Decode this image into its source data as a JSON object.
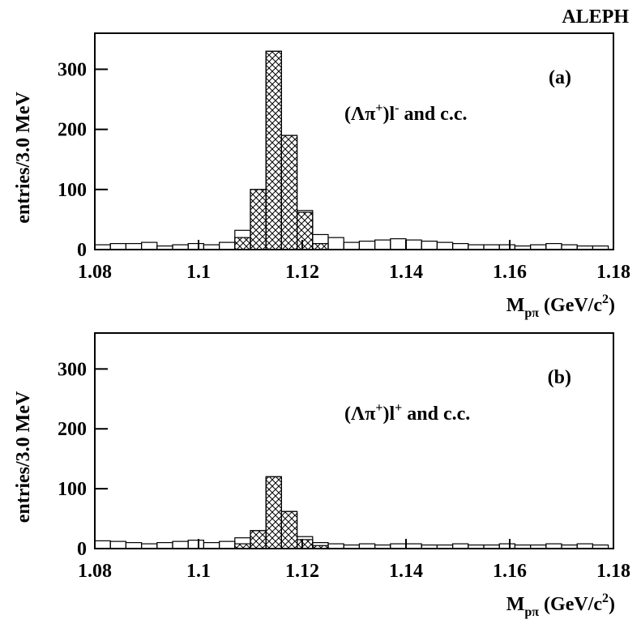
{
  "label": "ALEPH",
  "chart_data": [
    {
      "type": "histogram",
      "y_label": "entries/3.0 MeV",
      "x_label": [
        {
          "text": "M"
        },
        {
          "text": "pπ",
          "pos": "sub"
        },
        {
          "text": " (GeV/c"
        },
        {
          "text": "2",
          "pos": "sup"
        },
        {
          "text": ")"
        }
      ],
      "annotation": "(a)",
      "note": [
        {
          "text": "(Λπ"
        },
        {
          "text": "+",
          "pos": "sup"
        },
        {
          "text": ")l"
        },
        {
          "text": "-",
          "pos": "sup"
        },
        {
          "text": " and c.c."
        }
      ],
      "bins": [
        1.08,
        1.083,
        1.086,
        1.089,
        1.092,
        1.095,
        1.098,
        1.101,
        1.104,
        1.107,
        1.11,
        1.113,
        1.116,
        1.119,
        1.122,
        1.125,
        1.128,
        1.131,
        1.134,
        1.137,
        1.14,
        1.143,
        1.146,
        1.149,
        1.152,
        1.155,
        1.158,
        1.161,
        1.164,
        1.167,
        1.17,
        1.173,
        1.176,
        1.179
      ],
      "series": [
        {
          "fill": "none",
          "values": [
            8,
            10,
            10,
            12,
            6,
            8,
            10,
            8,
            12,
            32,
            100,
            330,
            190,
            65,
            25,
            20,
            12,
            14,
            16,
            18,
            16,
            14,
            12,
            10,
            8,
            8,
            8,
            6,
            8,
            10,
            8,
            6,
            6
          ]
        },
        {
          "fill": "hatch",
          "values": [
            0,
            0,
            0,
            0,
            0,
            0,
            0,
            0,
            0,
            20,
            100,
            330,
            190,
            62,
            10,
            0,
            0,
            0,
            0,
            0,
            0,
            0,
            0,
            0,
            0,
            0,
            0,
            0,
            0,
            0,
            0,
            0,
            0
          ]
        }
      ],
      "xlim": [
        1.08,
        1.18
      ],
      "ylim": [
        0,
        360
      ],
      "xticks": [
        1.08,
        1.1,
        1.12,
        1.14,
        1.16,
        1.18
      ],
      "yticks": [
        0,
        100,
        200,
        300
      ]
    },
    {
      "type": "histogram",
      "y_label": "entries/3.0 MeV",
      "x_label": [
        {
          "text": "M"
        },
        {
          "text": "pπ",
          "pos": "sub"
        },
        {
          "text": " (GeV/c"
        },
        {
          "text": "2",
          "pos": "sup"
        },
        {
          "text": ")"
        }
      ],
      "annotation": "(b)",
      "note": [
        {
          "text": "(Λπ"
        },
        {
          "text": "+",
          "pos": "sup"
        },
        {
          "text": ")l"
        },
        {
          "text": "+",
          "pos": "sup"
        },
        {
          "text": " and c.c."
        }
      ],
      "bins": [
        1.08,
        1.083,
        1.086,
        1.089,
        1.092,
        1.095,
        1.098,
        1.101,
        1.104,
        1.107,
        1.11,
        1.113,
        1.116,
        1.119,
        1.122,
        1.125,
        1.128,
        1.131,
        1.134,
        1.137,
        1.14,
        1.143,
        1.146,
        1.149,
        1.152,
        1.155,
        1.158,
        1.161,
        1.164,
        1.167,
        1.17,
        1.173,
        1.176,
        1.179
      ],
      "series": [
        {
          "fill": "none",
          "values": [
            13,
            12,
            10,
            8,
            10,
            12,
            14,
            10,
            12,
            18,
            30,
            120,
            62,
            20,
            10,
            8,
            6,
            8,
            6,
            8,
            8,
            6,
            6,
            8,
            6,
            6,
            8,
            6,
            6,
            8,
            6,
            8,
            6
          ]
        },
        {
          "fill": "hatch",
          "values": [
            0,
            0,
            0,
            0,
            0,
            0,
            0,
            0,
            0,
            8,
            30,
            120,
            62,
            15,
            5,
            0,
            0,
            0,
            0,
            0,
            0,
            0,
            0,
            0,
            0,
            0,
            0,
            0,
            0,
            0,
            0,
            0,
            0
          ]
        }
      ],
      "xlim": [
        1.08,
        1.18
      ],
      "ylim": [
        0,
        360
      ],
      "xticks": [
        1.08,
        1.1,
        1.12,
        1.14,
        1.16,
        1.18
      ],
      "yticks": [
        0,
        100,
        200,
        300
      ]
    }
  ]
}
